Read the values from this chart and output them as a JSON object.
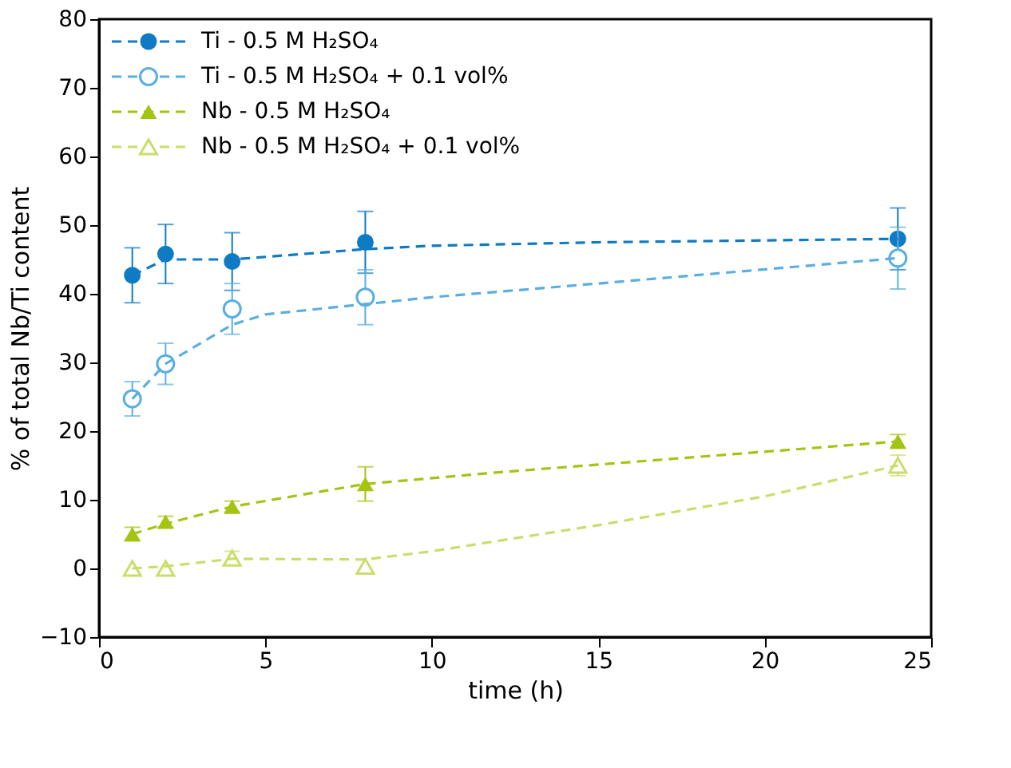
{
  "chart_data": {
    "type": "scatter",
    "xlabel": "time (h)",
    "ylabel": "% of total Nb/Ti content",
    "xlim": [
      0,
      25
    ],
    "xticks": [
      0,
      5,
      10,
      15,
      20,
      25
    ],
    "ylim": [
      -10,
      80
    ],
    "yticks": [
      -10,
      0,
      10,
      20,
      30,
      40,
      50,
      60,
      70,
      80
    ],
    "grid": false,
    "legend": "top left",
    "series": [
      {
        "name": "Ti - 0.5 M H₂SO₄",
        "color": "#0f7bc4",
        "marker": "circle",
        "x": [
          1,
          2,
          4,
          8,
          24
        ],
        "values": [
          42.7,
          45.8,
          44.7,
          47.5,
          48
        ],
        "errors": [
          4,
          4.3,
          4.2,
          4.5,
          4.5
        ]
      },
      {
        "name": "Ti - 0.5 M H₂SO₄ + 0.1 vol%",
        "color": "#5aaee0",
        "marker": "circle",
        "x": [
          1,
          2,
          4,
          8,
          24
        ],
        "values": [
          24.7,
          29.8,
          37.8,
          39.5,
          45.2
        ],
        "errors": [
          2.5,
          3,
          3.7,
          4,
          4.5
        ]
      },
      {
        "name": "Nb - 0.5 M H₂SO₄",
        "color": "#a3c411",
        "marker": "triangle",
        "x": [
          1,
          2,
          4,
          8,
          24
        ],
        "values": [
          5,
          6.8,
          9,
          12.3,
          18.5
        ],
        "errors": [
          1,
          0.8,
          0.8,
          2.5,
          1
        ]
      },
      {
        "name": "Nb - 0.5 M H₂SO₄ + 0.1 vol%",
        "color": "#c9de6a",
        "marker": "triangle",
        "x": [
          1,
          2,
          4,
          8,
          24
        ],
        "values": [
          0,
          0,
          1.5,
          0.3,
          15
        ],
        "errors": [
          null,
          null,
          1,
          null,
          1.5
        ]
      },
      {
        "type": "line",
        "line_style": "dashed",
        "color": "#0f7bc4",
        "x": [
          1,
          2,
          4,
          8,
          10,
          15,
          24
        ],
        "values": [
          42.7,
          45,
          45,
          46.5,
          47,
          47.5,
          48
        ]
      },
      {
        "type": "line",
        "line_style": "dashed",
        "color": "#5aaee0",
        "x": [
          1,
          2,
          4,
          5,
          8,
          10,
          15,
          24
        ],
        "values": [
          24.7,
          29.8,
          35.5,
          37,
          38.5,
          39.5,
          41.5,
          45.2
        ]
      },
      {
        "type": "line",
        "line_style": "dashed",
        "color": "#a3c411",
        "x": [
          1,
          2,
          4,
          8,
          12,
          16,
          24
        ],
        "values": [
          5,
          6.5,
          9,
          12.3,
          14,
          15.5,
          18.5
        ]
      },
      {
        "type": "line",
        "line_style": "dashed",
        "color": "#c9de6a",
        "x": [
          1,
          2,
          4,
          8,
          10,
          15,
          20,
          24
        ],
        "values": [
          0,
          0.3,
          1.4,
          1.3,
          2.5,
          6.3,
          10.5,
          15
        ]
      }
    ]
  }
}
